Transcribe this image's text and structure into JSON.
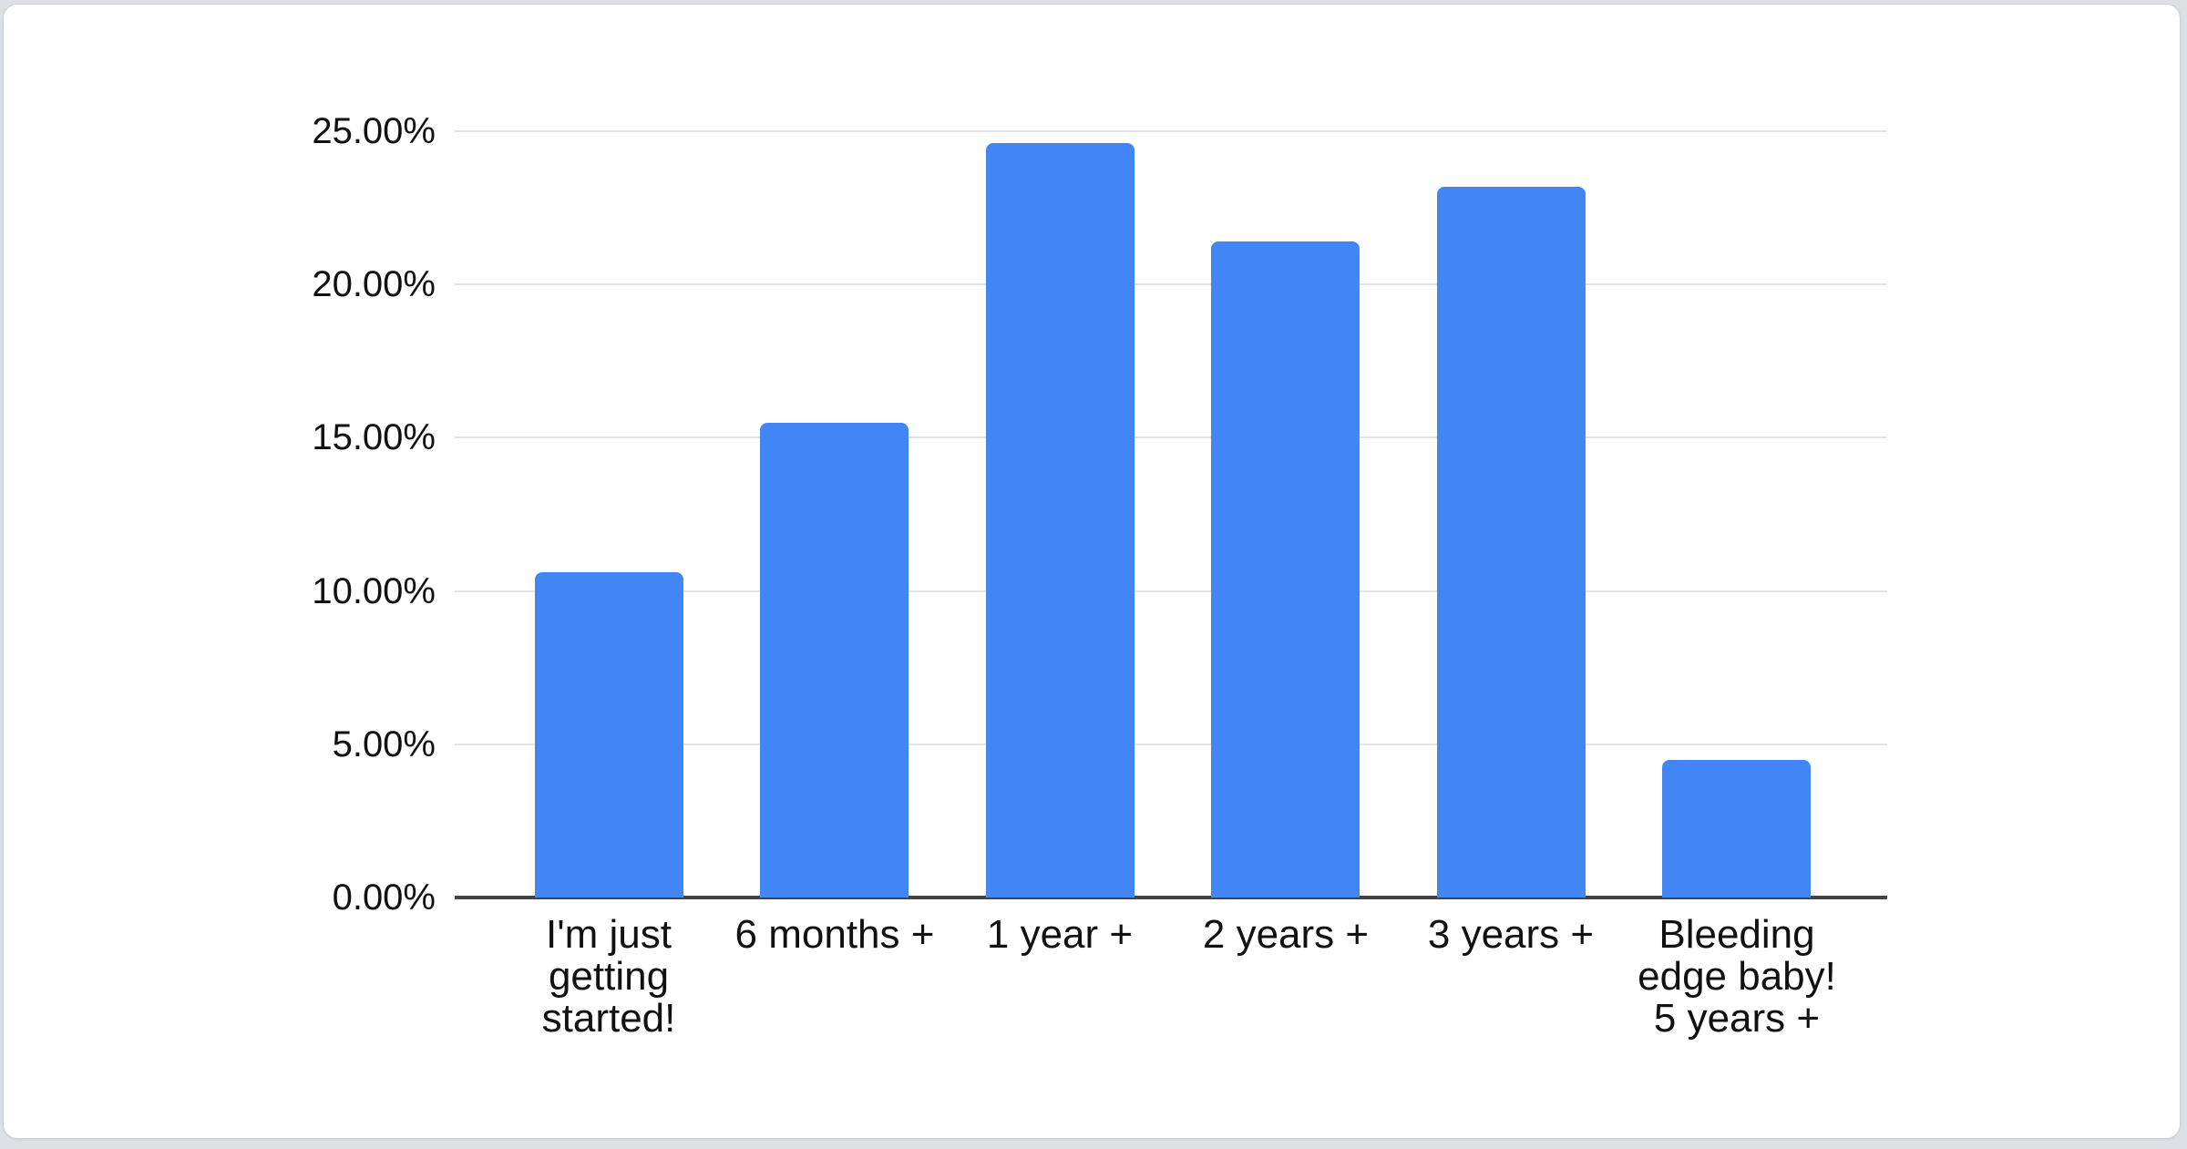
{
  "page": {
    "background_color": "#dde0e4",
    "card_background": "#ffffff",
    "card_border_color": "#ccd0d6"
  },
  "chart_data": {
    "type": "bar",
    "title": "",
    "categories": [
      "I'm just\ngetting\nstarted!",
      "6 months +",
      "1 year +",
      "2 years +",
      "3 years +",
      "Bleeding\nedge baby!\n5 years +"
    ],
    "values": [
      10.6,
      15.5,
      24.6,
      21.4,
      23.2,
      4.5
    ],
    "value_unit": "percent",
    "bar_color": "#4285f4",
    "y_axis": {
      "tick_labels": [
        "0.00%",
        "5.00%",
        "10.00%",
        "15.00%",
        "20.00%",
        "25.00%"
      ],
      "tick_values": [
        0,
        5,
        10,
        15,
        20,
        25
      ],
      "min": 0,
      "max": 25
    },
    "x_axis_label": "",
    "y_axis_label": "",
    "grid": true,
    "legend_position": "none",
    "gridline_color": "#e4e4e6",
    "axis_line_color": "#424242",
    "label_color": "#111111"
  }
}
